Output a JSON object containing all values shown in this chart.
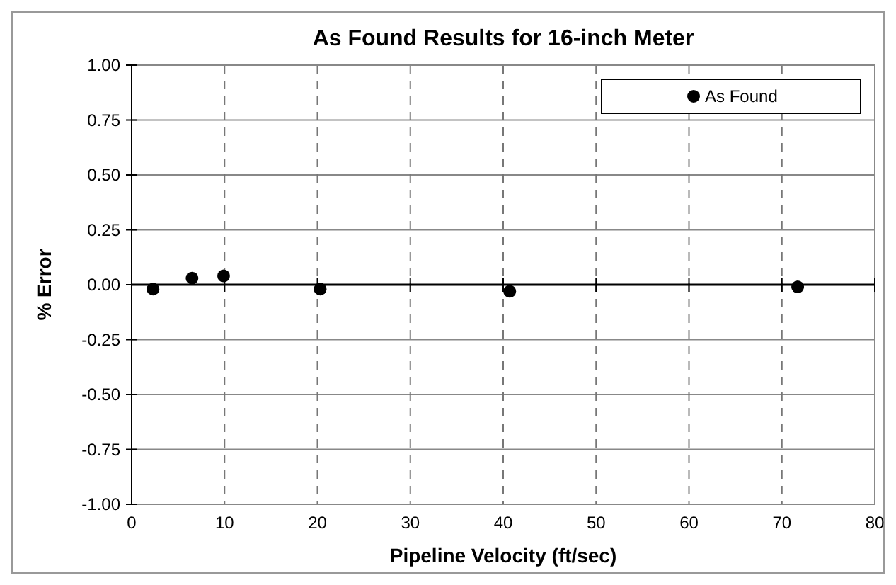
{
  "chart_data": {
    "type": "scatter",
    "title": "As Found Results for 16-inch Meter",
    "xlabel": "Pipeline Velocity (ft/sec)",
    "ylabel": "% Error",
    "series": [
      {
        "name": "As Found",
        "color": "#000000",
        "x": [
          2.3,
          6.5,
          9.9,
          20.3,
          40.7,
          71.7
        ],
        "values": [
          -0.02,
          0.03,
          0.04,
          -0.02,
          -0.03,
          -0.01
        ]
      }
    ],
    "xlim": [
      0,
      80
    ],
    "xticks": [
      0,
      10,
      20,
      30,
      40,
      50,
      60,
      70,
      80
    ],
    "ylim": [
      -1,
      1
    ],
    "yticks": [
      {
        "value": -1,
        "label": "-1.00"
      },
      {
        "value": -0.75,
        "label": "-0.75"
      },
      {
        "value": -0.5,
        "label": "-0.50"
      },
      {
        "value": -0.25,
        "label": "-0.25"
      },
      {
        "value": 0,
        "label": "0.00"
      },
      {
        "value": 0.25,
        "label": "0.25"
      },
      {
        "value": 0.5,
        "label": "0.50"
      },
      {
        "value": 0.75,
        "label": "0.75"
      },
      {
        "value": 1,
        "label": "1.00"
      }
    ],
    "grid": true,
    "legend": "top right",
    "marker": "circle"
  }
}
